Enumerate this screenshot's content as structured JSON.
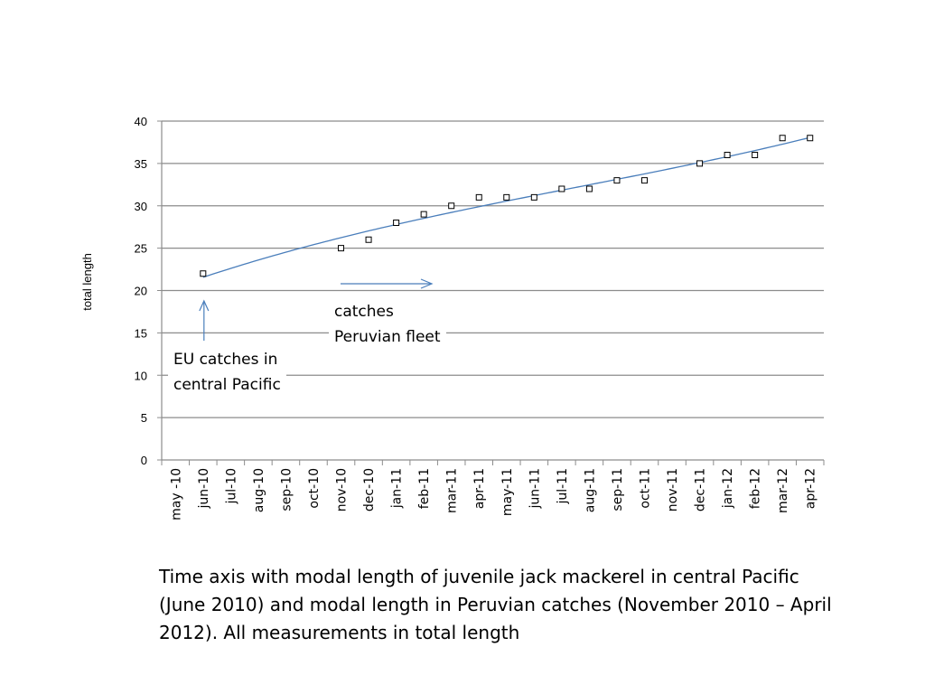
{
  "chart_data": {
    "type": "scatter",
    "title": "",
    "xlabel": "",
    "ylabel": "total length",
    "ylim": [
      0,
      40
    ],
    "yticks": [
      0,
      5,
      10,
      15,
      20,
      25,
      30,
      35,
      40
    ],
    "grid": true,
    "legend": "none",
    "categories": [
      "may -10",
      "jun-10",
      "jul-10",
      "aug-10",
      "sep-10",
      "oct-10",
      "nov-10",
      "dec-10",
      "jan-11",
      "feb-11",
      "mar-11",
      "apr-11",
      "may-11",
      "jun-11",
      "jul-11",
      "aug-11",
      "sep-11",
      "oct-11",
      "nov-11",
      "dec-11",
      "jan-12",
      "feb-12",
      "mar-12",
      "apr-12"
    ],
    "series": [
      {
        "values": [
          null,
          22,
          null,
          null,
          null,
          null,
          25,
          26,
          28,
          29,
          30,
          31,
          31,
          31,
          32,
          32,
          33,
          33,
          null,
          35,
          36,
          36,
          38,
          38
        ],
        "marker": "square",
        "trendline": true,
        "color": "#4a7ebb"
      }
    ],
    "annotations": [
      {
        "id": "eu",
        "lines": [
          "EU catches in",
          "central Pacific"
        ],
        "arrow_direction": "up",
        "target_category": "jun-10"
      },
      {
        "id": "peru",
        "lines": [
          "catches",
          "Peruvian fleet"
        ],
        "arrow_direction": "right"
      }
    ]
  },
  "caption": "Time axis with modal length of juvenile jack mackerel in central Pacific (June 2010) and modal length in Peruvian catches (November 2010 – April 2012). All measurements  in total length"
}
